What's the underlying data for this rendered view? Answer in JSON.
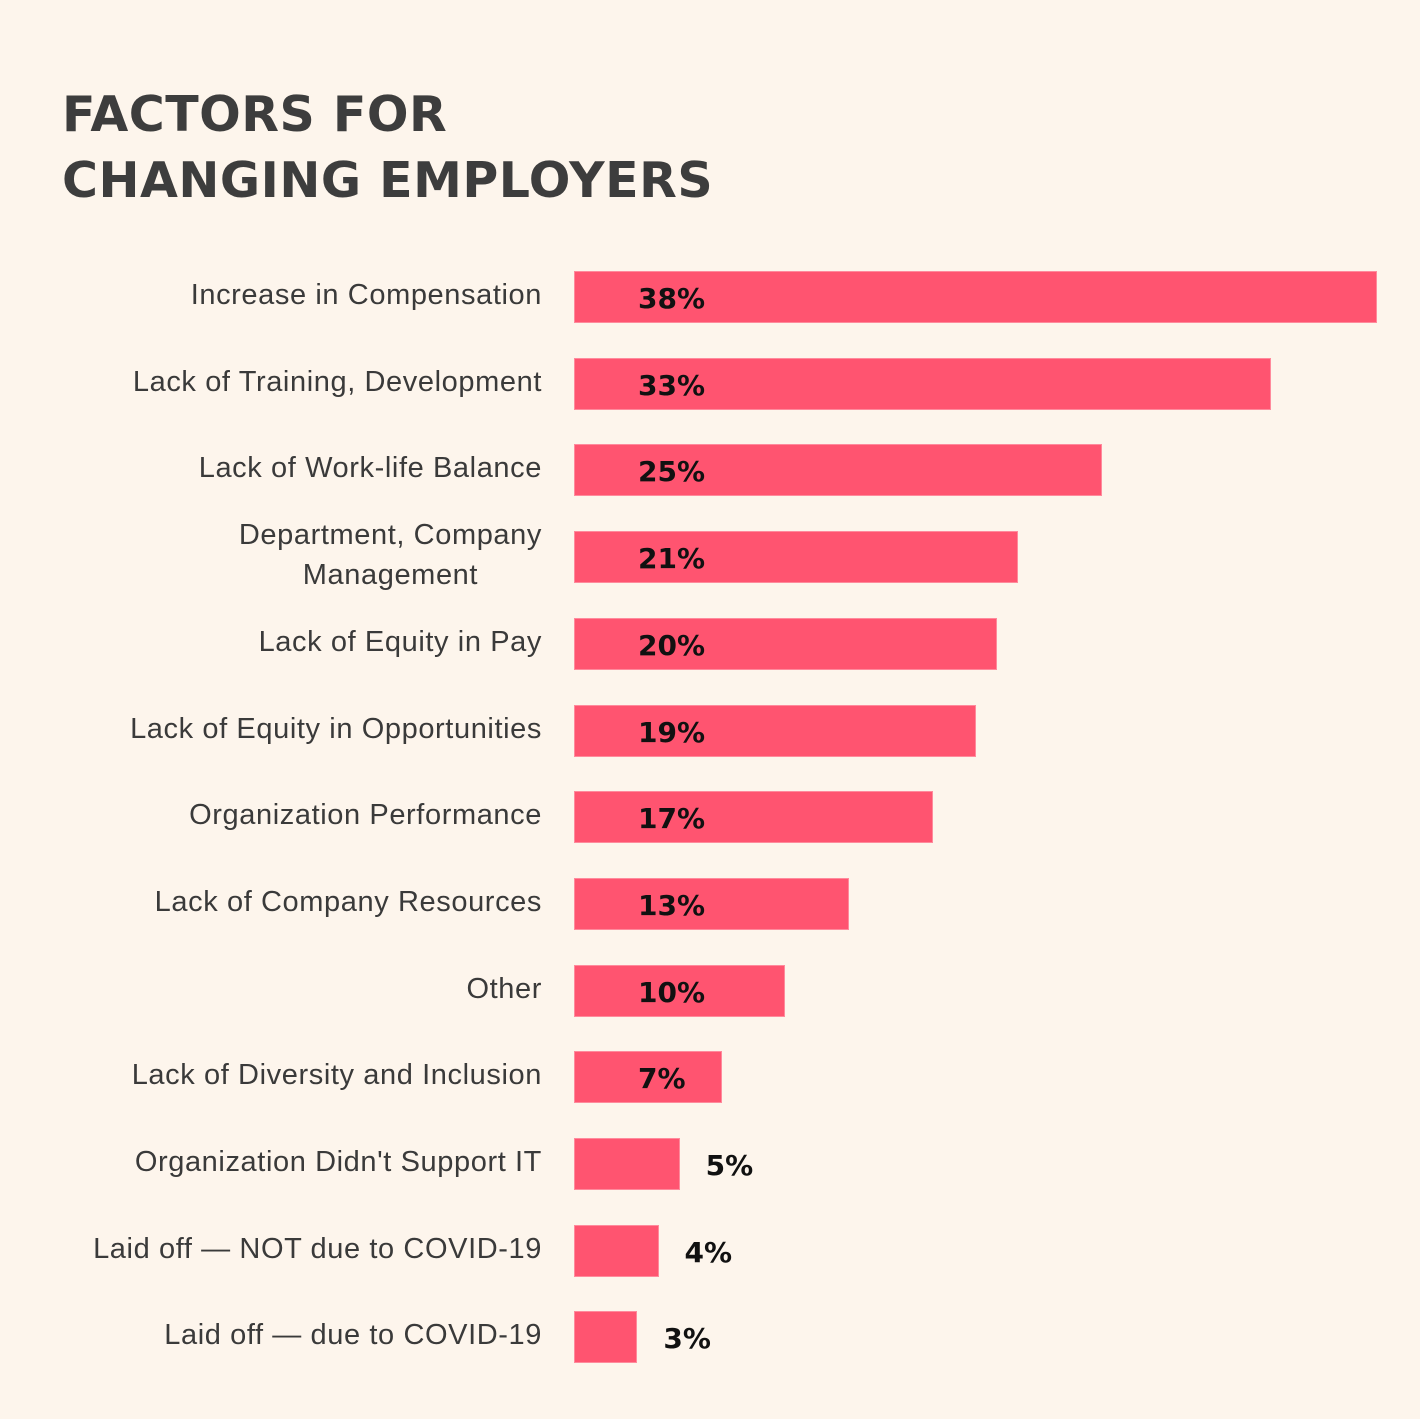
{
  "chart_data": {
    "type": "bar",
    "orientation": "horizontal",
    "title": "FACTORS FOR\nCHANGING EMPLOYERS",
    "categories": [
      "Increase in Compensation",
      "Lack of Training, Development",
      "Lack of Work-life Balance",
      "Department, Company\nManagement",
      "Lack of Equity in Pay",
      "Lack of Equity in Opportunities",
      "Organization Performance",
      "Lack of Company Resources",
      "Other",
      "Lack of Diversity and Inclusion",
      "Organization Didn't Support IT",
      "Laid off — NOT due to COVID-19",
      "Laid off — due to COVID-19"
    ],
    "values": [
      38,
      33,
      25,
      21,
      20,
      19,
      17,
      13,
      10,
      7,
      5,
      4,
      3
    ],
    "value_labels": [
      "38%",
      "33%",
      "25%",
      "21%",
      "20%",
      "19%",
      "17%",
      "13%",
      "10%",
      "7%",
      "5%",
      "4%",
      "3%"
    ],
    "unit": "%",
    "xlim": [
      0,
      38
    ],
    "grid": false,
    "axes_visible": false,
    "colors": {
      "bar": "#ff5470",
      "background": "#fdf5ec",
      "title": "#3d3d3d",
      "label": "#3a3a3a",
      "value": "#111111"
    }
  }
}
